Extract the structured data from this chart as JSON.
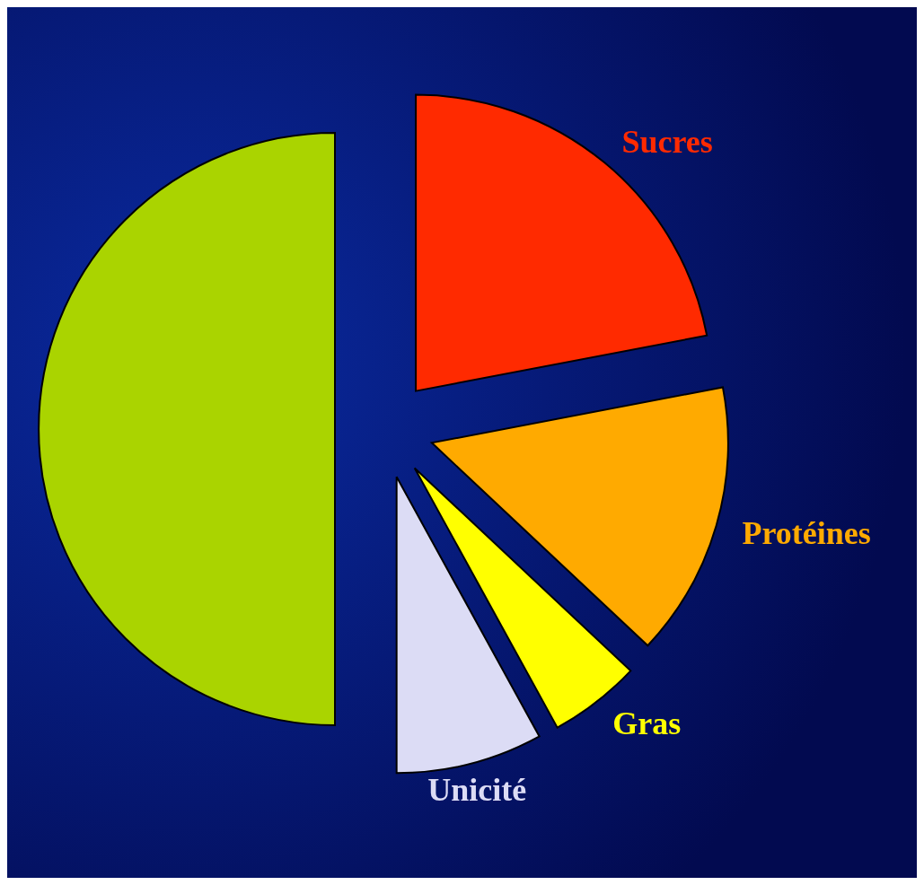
{
  "chart_data": {
    "type": "pie",
    "categories": [
      "Sucres",
      "Protéines",
      "Gras",
      "Unicité",
      null
    ],
    "values": [
      22,
      15,
      5,
      8,
      50
    ],
    "colors": [
      "#ff2a00",
      "#ffaa00",
      "#ffff00",
      "#dcdcf5",
      "#aad400"
    ]
  }
}
